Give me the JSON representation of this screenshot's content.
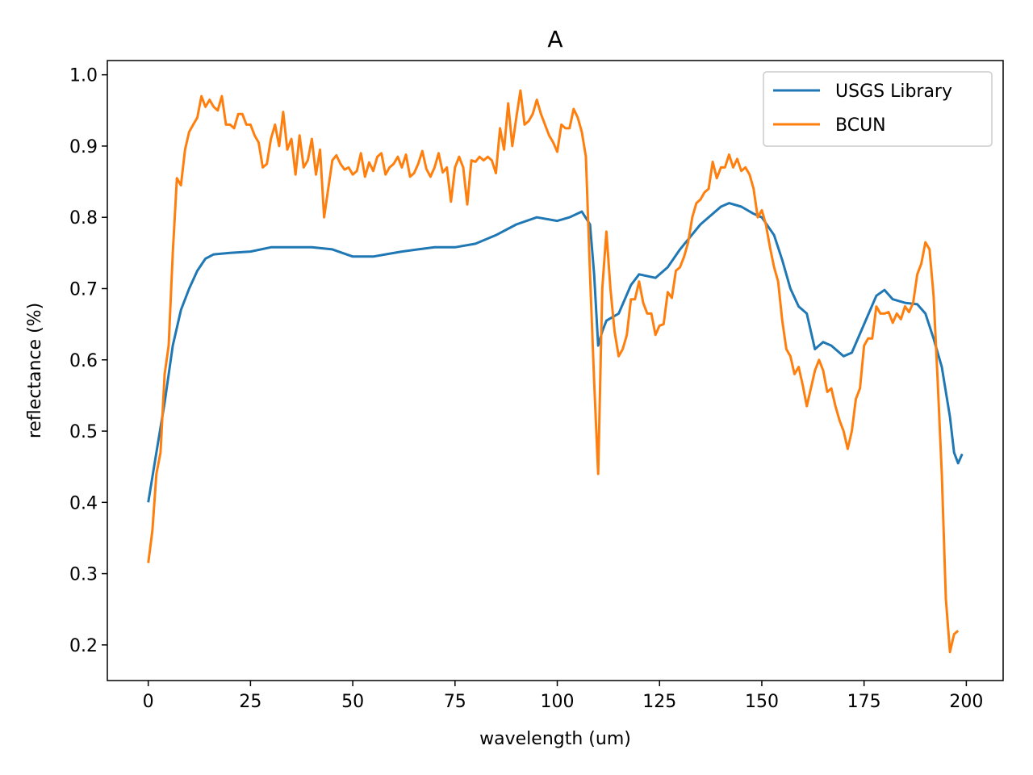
{
  "chart_data": {
    "type": "line",
    "title": "A",
    "xlabel": "wavelength (um)",
    "ylabel": "reflectance (%)",
    "xlim": [
      -10,
      209
    ],
    "ylim": [
      0.15,
      1.02
    ],
    "xticks": [
      0,
      25,
      50,
      75,
      100,
      125,
      150,
      175,
      200
    ],
    "yticks": [
      0.2,
      0.3,
      0.4,
      0.5,
      0.6,
      0.7,
      0.8,
      0.9,
      1.0
    ],
    "grid": false,
    "legend": "top-right",
    "series": [
      {
        "name": "USGS Library",
        "color": "#1f77b4",
        "points": [
          [
            0,
            0.4
          ],
          [
            2,
            0.47
          ],
          [
            4,
            0.54
          ],
          [
            6,
            0.62
          ],
          [
            8,
            0.67
          ],
          [
            10,
            0.7
          ],
          [
            12,
            0.725
          ],
          [
            14,
            0.742
          ],
          [
            16,
            0.748
          ],
          [
            20,
            0.75
          ],
          [
            25,
            0.752
          ],
          [
            30,
            0.758
          ],
          [
            35,
            0.758
          ],
          [
            40,
            0.758
          ],
          [
            45,
            0.755
          ],
          [
            50,
            0.745
          ],
          [
            55,
            0.745
          ],
          [
            58,
            0.748
          ],
          [
            62,
            0.752
          ],
          [
            66,
            0.755
          ],
          [
            70,
            0.758
          ],
          [
            75,
            0.758
          ],
          [
            80,
            0.763
          ],
          [
            85,
            0.775
          ],
          [
            90,
            0.79
          ],
          [
            95,
            0.8
          ],
          [
            100,
            0.795
          ],
          [
            103,
            0.8
          ],
          [
            106,
            0.808
          ],
          [
            108,
            0.79
          ],
          [
            109,
            0.72
          ],
          [
            110,
            0.62
          ],
          [
            111,
            0.64
          ],
          [
            112,
            0.655
          ],
          [
            115,
            0.665
          ],
          [
            118,
            0.705
          ],
          [
            120,
            0.72
          ],
          [
            124,
            0.715
          ],
          [
            127,
            0.73
          ],
          [
            130,
            0.755
          ],
          [
            135,
            0.79
          ],
          [
            140,
            0.815
          ],
          [
            142,
            0.82
          ],
          [
            145,
            0.815
          ],
          [
            148,
            0.805
          ],
          [
            150,
            0.8
          ],
          [
            153,
            0.775
          ],
          [
            155,
            0.74
          ],
          [
            157,
            0.7
          ],
          [
            159,
            0.675
          ],
          [
            161,
            0.665
          ],
          [
            163,
            0.615
          ],
          [
            165,
            0.625
          ],
          [
            167,
            0.62
          ],
          [
            170,
            0.605
          ],
          [
            172,
            0.61
          ],
          [
            175,
            0.65
          ],
          [
            178,
            0.69
          ],
          [
            180,
            0.698
          ],
          [
            182,
            0.685
          ],
          [
            185,
            0.68
          ],
          [
            188,
            0.678
          ],
          [
            190,
            0.665
          ],
          [
            192,
            0.63
          ],
          [
            194,
            0.59
          ],
          [
            196,
            0.52
          ],
          [
            197,
            0.47
          ],
          [
            198,
            0.455
          ],
          [
            199,
            0.468
          ]
        ]
      },
      {
        "name": "BCUN",
        "color": "#ff7f0e",
        "points": [
          [
            0,
            0.315
          ],
          [
            1,
            0.36
          ],
          [
            2,
            0.44
          ],
          [
            3,
            0.47
          ],
          [
            4,
            0.58
          ],
          [
            5,
            0.62
          ],
          [
            6,
            0.75
          ],
          [
            7,
            0.855
          ],
          [
            8,
            0.845
          ],
          [
            9,
            0.895
          ],
          [
            10,
            0.92
          ],
          [
            11,
            0.93
          ],
          [
            12,
            0.94
          ],
          [
            13,
            0.97
          ],
          [
            14,
            0.955
          ],
          [
            15,
            0.965
          ],
          [
            16,
            0.955
          ],
          [
            17,
            0.95
          ],
          [
            18,
            0.97
          ],
          [
            19,
            0.93
          ],
          [
            20,
            0.93
          ],
          [
            21,
            0.925
          ],
          [
            22,
            0.945
          ],
          [
            23,
            0.945
          ],
          [
            24,
            0.93
          ],
          [
            25,
            0.93
          ],
          [
            26,
            0.915
          ],
          [
            27,
            0.905
          ],
          [
            28,
            0.87
          ],
          [
            29,
            0.875
          ],
          [
            30,
            0.91
          ],
          [
            31,
            0.93
          ],
          [
            32,
            0.9
          ],
          [
            33,
            0.948
          ],
          [
            34,
            0.895
          ],
          [
            35,
            0.91
          ],
          [
            36,
            0.86
          ],
          [
            37,
            0.915
          ],
          [
            38,
            0.87
          ],
          [
            39,
            0.88
          ],
          [
            40,
            0.91
          ],
          [
            41,
            0.86
          ],
          [
            42,
            0.895
          ],
          [
            43,
            0.8
          ],
          [
            44,
            0.84
          ],
          [
            45,
            0.88
          ],
          [
            46,
            0.887
          ],
          [
            47,
            0.875
          ],
          [
            48,
            0.867
          ],
          [
            49,
            0.87
          ],
          [
            50,
            0.86
          ],
          [
            51,
            0.865
          ],
          [
            52,
            0.89
          ],
          [
            53,
            0.857
          ],
          [
            54,
            0.877
          ],
          [
            55,
            0.865
          ],
          [
            56,
            0.885
          ],
          [
            57,
            0.89
          ],
          [
            58,
            0.86
          ],
          [
            59,
            0.87
          ],
          [
            60,
            0.875
          ],
          [
            61,
            0.885
          ],
          [
            62,
            0.87
          ],
          [
            63,
            0.888
          ],
          [
            64,
            0.857
          ],
          [
            65,
            0.862
          ],
          [
            66,
            0.875
          ],
          [
            67,
            0.893
          ],
          [
            68,
            0.868
          ],
          [
            69,
            0.857
          ],
          [
            70,
            0.87
          ],
          [
            71,
            0.89
          ],
          [
            72,
            0.863
          ],
          [
            73,
            0.87
          ],
          [
            74,
            0.822
          ],
          [
            75,
            0.87
          ],
          [
            76,
            0.885
          ],
          [
            77,
            0.87
          ],
          [
            78,
            0.818
          ],
          [
            79,
            0.88
          ],
          [
            80,
            0.878
          ],
          [
            81,
            0.885
          ],
          [
            82,
            0.88
          ],
          [
            83,
            0.885
          ],
          [
            84,
            0.88
          ],
          [
            85,
            0.862
          ],
          [
            86,
            0.925
          ],
          [
            87,
            0.895
          ],
          [
            88,
            0.96
          ],
          [
            89,
            0.9
          ],
          [
            90,
            0.94
          ],
          [
            91,
            0.978
          ],
          [
            92,
            0.93
          ],
          [
            93,
            0.935
          ],
          [
            94,
            0.945
          ],
          [
            95,
            0.965
          ],
          [
            96,
            0.945
          ],
          [
            97,
            0.93
          ],
          [
            98,
            0.915
          ],
          [
            99,
            0.905
          ],
          [
            100,
            0.892
          ],
          [
            101,
            0.93
          ],
          [
            102,
            0.925
          ],
          [
            103,
            0.925
          ],
          [
            104,
            0.952
          ],
          [
            105,
            0.94
          ],
          [
            106,
            0.92
          ],
          [
            107,
            0.885
          ],
          [
            108,
            0.72
          ],
          [
            109,
            0.57
          ],
          [
            110,
            0.44
          ],
          [
            111,
            0.7
          ],
          [
            112,
            0.78
          ],
          [
            113,
            0.7
          ],
          [
            114,
            0.64
          ],
          [
            115,
            0.605
          ],
          [
            116,
            0.615
          ],
          [
            117,
            0.635
          ],
          [
            118,
            0.685
          ],
          [
            119,
            0.685
          ],
          [
            120,
            0.71
          ],
          [
            121,
            0.68
          ],
          [
            122,
            0.665
          ],
          [
            123,
            0.665
          ],
          [
            124,
            0.635
          ],
          [
            125,
            0.648
          ],
          [
            126,
            0.65
          ],
          [
            127,
            0.695
          ],
          [
            128,
            0.687
          ],
          [
            129,
            0.725
          ],
          [
            130,
            0.73
          ],
          [
            131,
            0.745
          ],
          [
            132,
            0.765
          ],
          [
            133,
            0.8
          ],
          [
            134,
            0.82
          ],
          [
            135,
            0.825
          ],
          [
            136,
            0.835
          ],
          [
            137,
            0.84
          ],
          [
            138,
            0.878
          ],
          [
            139,
            0.855
          ],
          [
            140,
            0.87
          ],
          [
            141,
            0.87
          ],
          [
            142,
            0.888
          ],
          [
            143,
            0.87
          ],
          [
            144,
            0.882
          ],
          [
            145,
            0.865
          ],
          [
            146,
            0.87
          ],
          [
            147,
            0.86
          ],
          [
            148,
            0.84
          ],
          [
            149,
            0.8
          ],
          [
            150,
            0.81
          ],
          [
            151,
            0.79
          ],
          [
            152,
            0.758
          ],
          [
            153,
            0.73
          ],
          [
            154,
            0.71
          ],
          [
            155,
            0.655
          ],
          [
            156,
            0.615
          ],
          [
            157,
            0.605
          ],
          [
            158,
            0.58
          ],
          [
            159,
            0.59
          ],
          [
            160,
            0.565
          ],
          [
            161,
            0.535
          ],
          [
            162,
            0.56
          ],
          [
            163,
            0.585
          ],
          [
            164,
            0.6
          ],
          [
            165,
            0.585
          ],
          [
            166,
            0.555
          ],
          [
            167,
            0.56
          ],
          [
            168,
            0.535
          ],
          [
            169,
            0.515
          ],
          [
            170,
            0.5
          ],
          [
            171,
            0.475
          ],
          [
            172,
            0.5
          ],
          [
            173,
            0.545
          ],
          [
            174,
            0.56
          ],
          [
            175,
            0.62
          ],
          [
            176,
            0.63
          ],
          [
            177,
            0.63
          ],
          [
            178,
            0.675
          ],
          [
            179,
            0.665
          ],
          [
            180,
            0.665
          ],
          [
            181,
            0.667
          ],
          [
            182,
            0.652
          ],
          [
            183,
            0.665
          ],
          [
            184,
            0.657
          ],
          [
            185,
            0.675
          ],
          [
            186,
            0.667
          ],
          [
            187,
            0.68
          ],
          [
            188,
            0.72
          ],
          [
            189,
            0.735
          ],
          [
            190,
            0.765
          ],
          [
            191,
            0.755
          ],
          [
            192,
            0.69
          ],
          [
            193,
            0.57
          ],
          [
            194,
            0.44
          ],
          [
            195,
            0.265
          ],
          [
            196,
            0.19
          ],
          [
            197,
            0.215
          ],
          [
            198,
            0.22
          ]
        ]
      }
    ]
  }
}
